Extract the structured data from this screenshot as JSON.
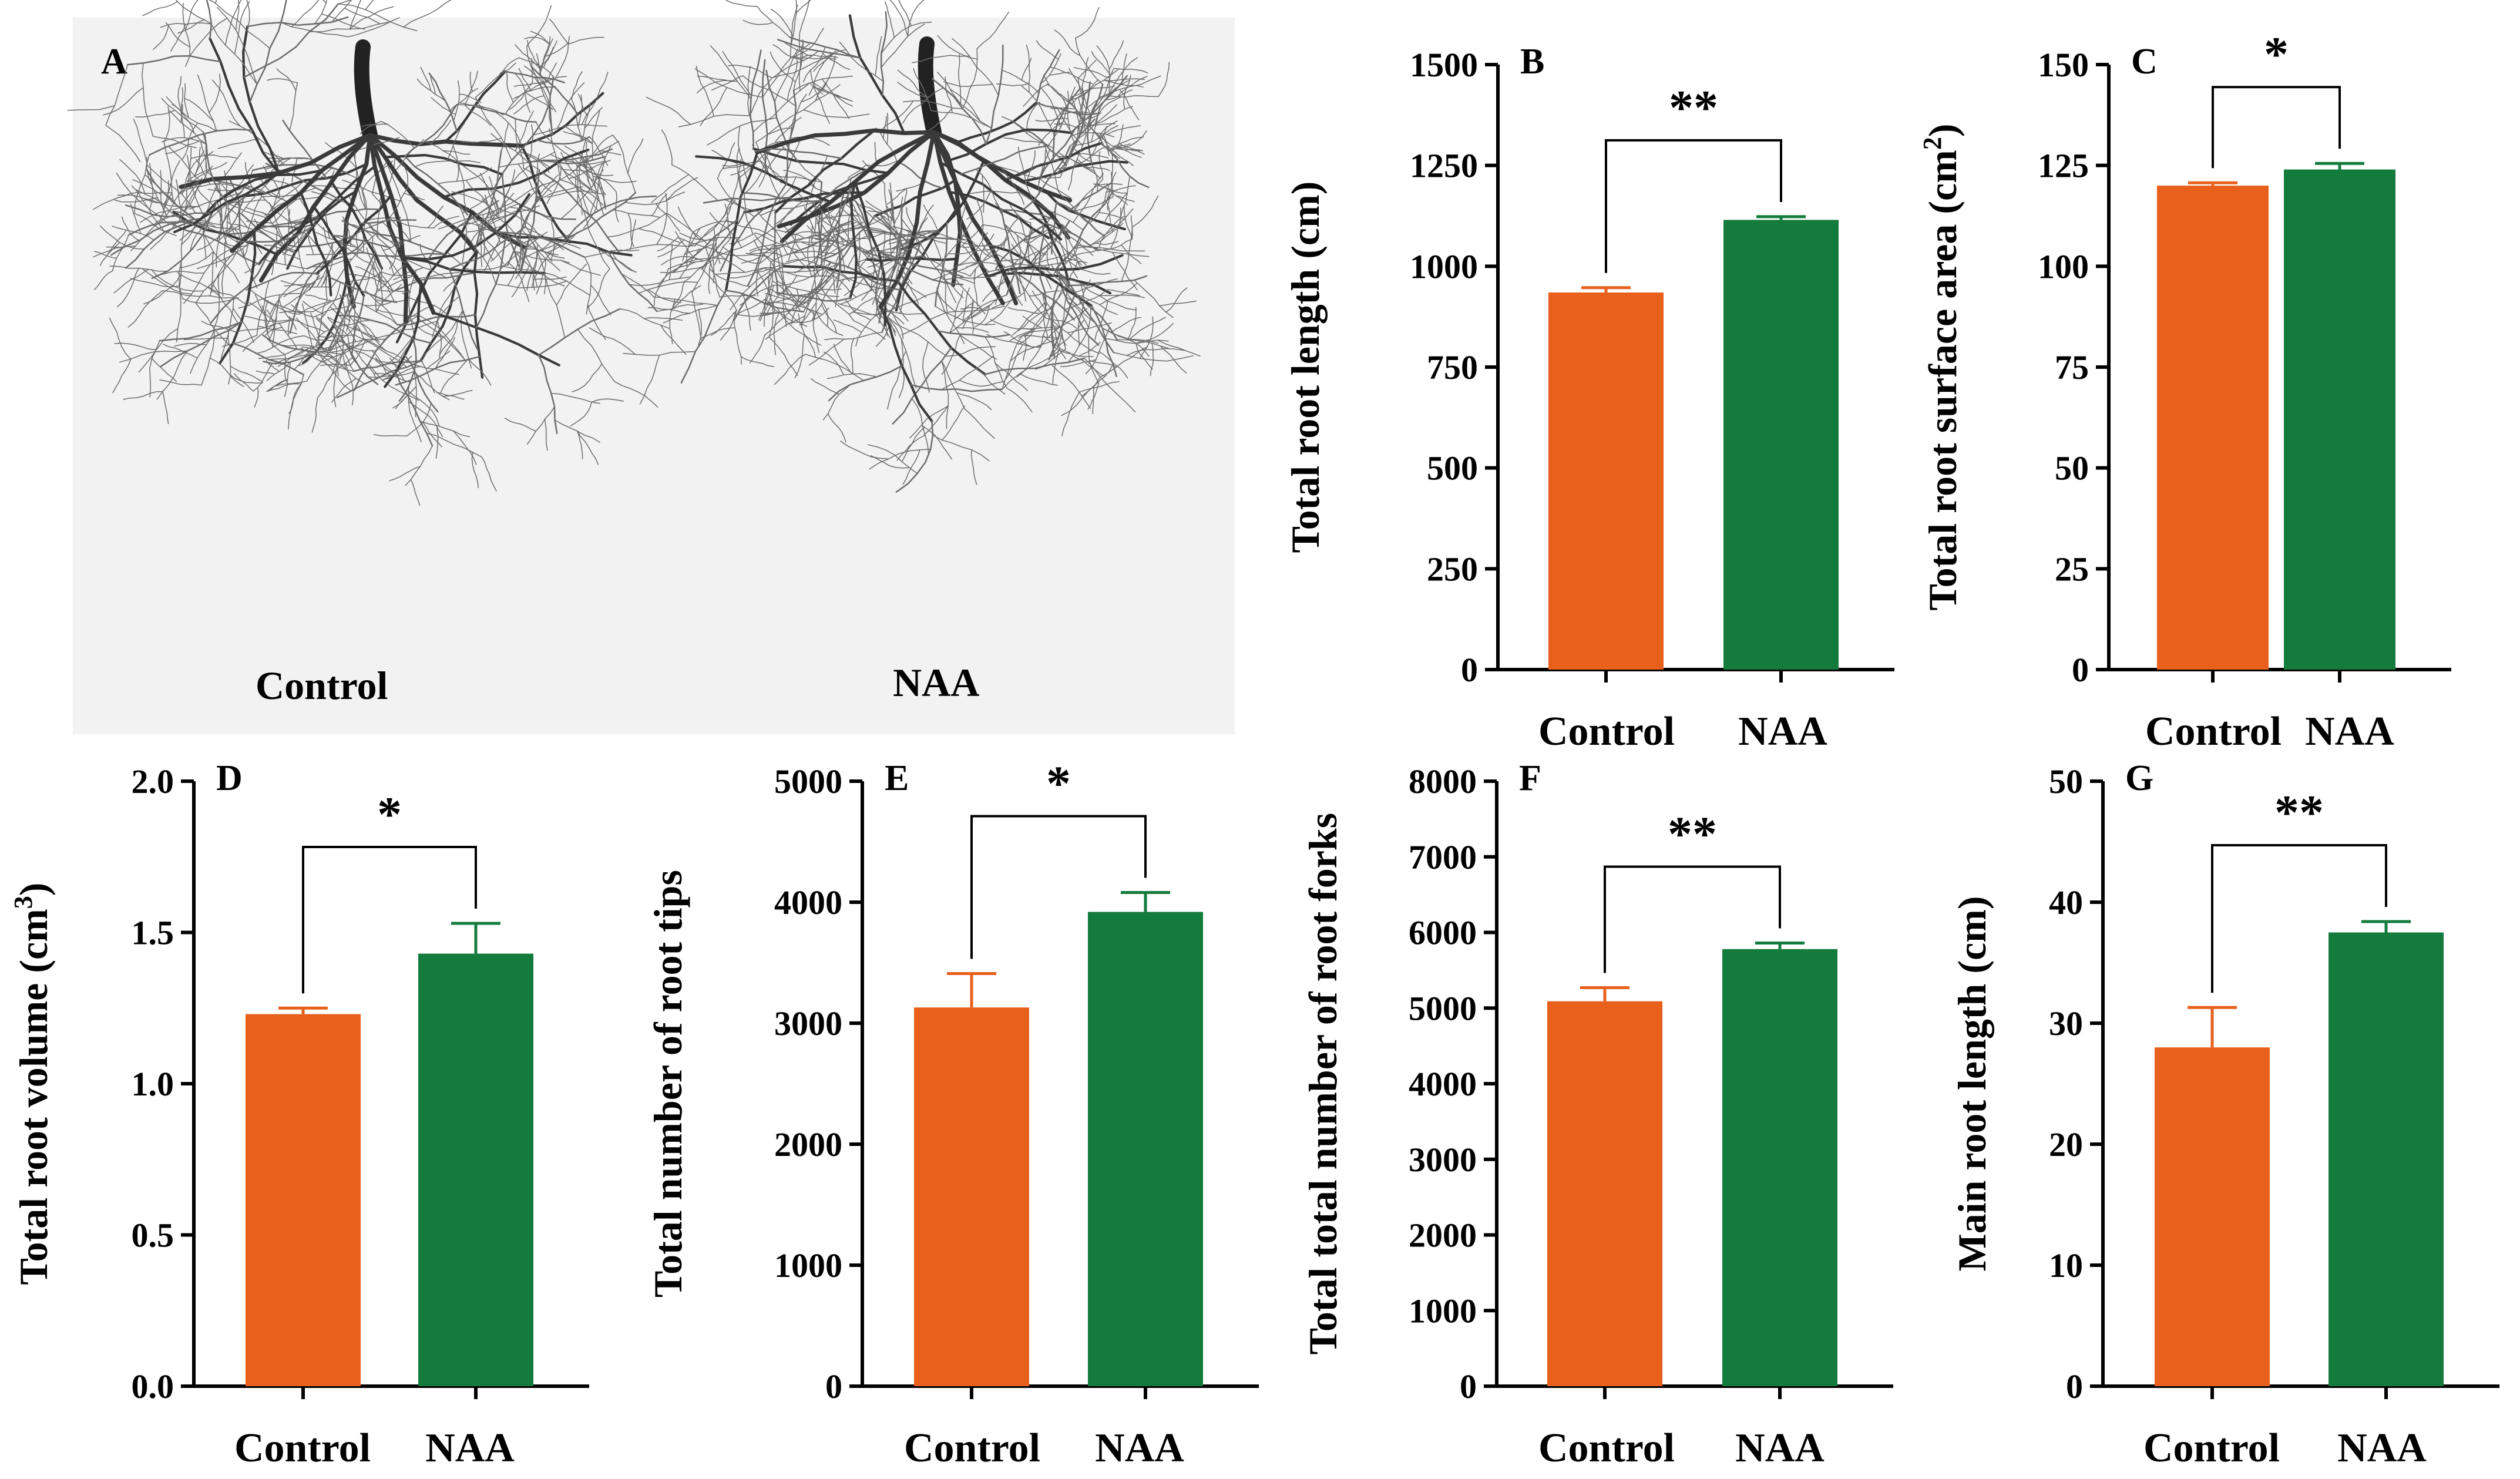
{
  "figure": {
    "photo": {
      "letter": "A",
      "labels": [
        "Control",
        "NAA"
      ]
    }
  },
  "colors": {
    "control": "#e8601c",
    "naa": "#137b3c",
    "error_bar_control": "#e8601c",
    "error_bar_naa": "#137b3c"
  },
  "chart_data": [
    {
      "id": "B",
      "type": "bar",
      "letter": "B",
      "ylabel": "Total root length (cm)",
      "categories": [
        "Control",
        "NAA"
      ],
      "values": [
        935,
        1115
      ],
      "errors": [
        12,
        8
      ],
      "ylim": [
        0,
        1500
      ],
      "yticks": [
        0,
        250,
        500,
        750,
        1000,
        1250,
        1500
      ],
      "significance": "**"
    },
    {
      "id": "C",
      "type": "bar",
      "letter": "C",
      "ylabel": "Total root surface area (cm",
      "ylabel_sup": "2",
      "ylabel_end": ")",
      "categories": [
        "Control",
        "NAA"
      ],
      "values": [
        120,
        124
      ],
      "errors": [
        0.7,
        1.5
      ],
      "ylim": [
        0,
        150
      ],
      "yticks": [
        0,
        25,
        50,
        75,
        100,
        125,
        150
      ],
      "significance": "*"
    },
    {
      "id": "D",
      "type": "bar",
      "letter": "D",
      "ylabel": "Total root volume (cm",
      "ylabel_sup": "3",
      "ylabel_end": ")",
      "categories": [
        "Control",
        "NAA"
      ],
      "values": [
        1.23,
        1.43
      ],
      "errors": [
        0.02,
        0.1
      ],
      "ylim": [
        0,
        2.0
      ],
      "yticks": [
        "0.0",
        "0.5",
        "1.0",
        "1.5",
        "2.0"
      ],
      "significance": "*"
    },
    {
      "id": "E",
      "type": "bar",
      "letter": "E",
      "ylabel": "Total number of root tips",
      "categories": [
        "Control",
        "NAA"
      ],
      "values": [
        3130,
        3920
      ],
      "errors": [
        280,
        160
      ],
      "ylim": [
        0,
        5000
      ],
      "yticks": [
        0,
        1000,
        2000,
        3000,
        4000,
        5000
      ],
      "significance": "*"
    },
    {
      "id": "F",
      "type": "bar",
      "letter": "F",
      "ylabel": "Total total number of root forks",
      "categories": [
        "Control",
        "NAA"
      ],
      "values": [
        5090,
        5780
      ],
      "errors": [
        180,
        80
      ],
      "ylim": [
        0,
        8000
      ],
      "yticks": [
        0,
        1000,
        2000,
        3000,
        4000,
        5000,
        6000,
        7000,
        8000
      ],
      "significance": "**"
    },
    {
      "id": "G",
      "type": "bar",
      "letter": "G",
      "ylabel": "Main root length (cm)",
      "categories": [
        "Control",
        "NAA"
      ],
      "values": [
        28,
        37.5
      ],
      "errors": [
        3.3,
        0.9
      ],
      "ylim": [
        0,
        50
      ],
      "yticks": [
        0,
        10,
        20,
        30,
        40,
        50
      ],
      "significance": "**"
    }
  ]
}
